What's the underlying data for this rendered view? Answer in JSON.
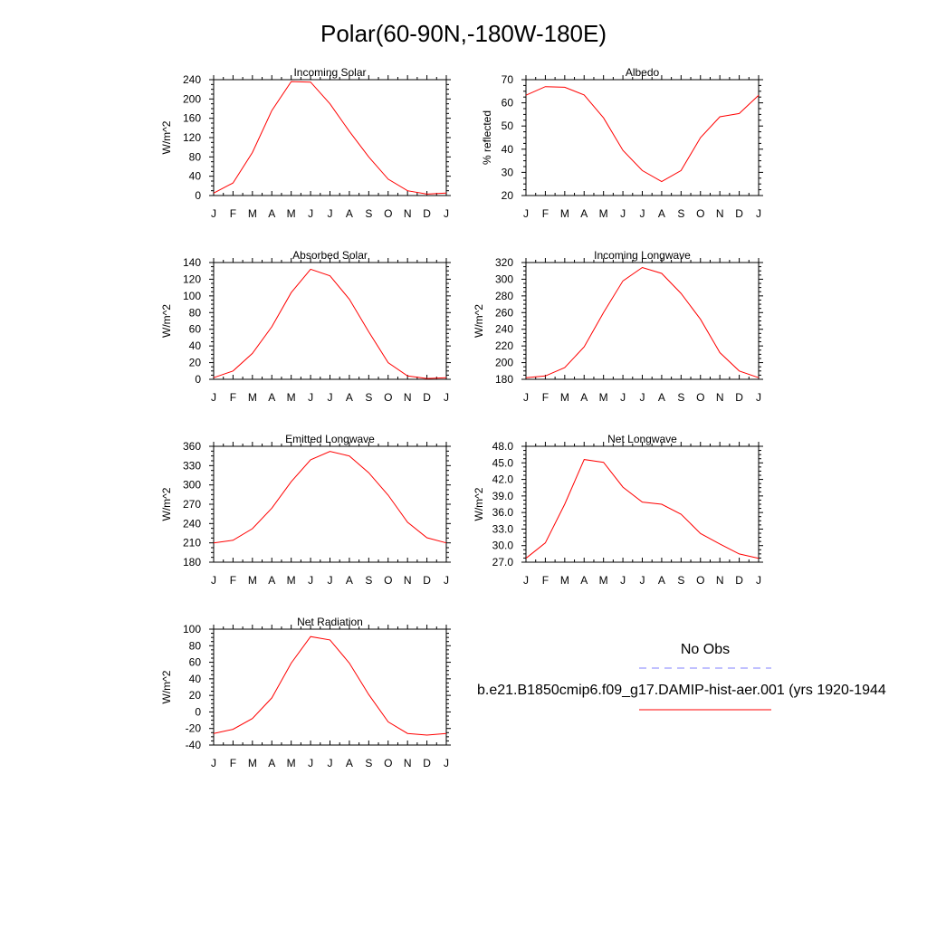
{
  "title": "Polar(60-90N,-180W-180E)",
  "months": [
    "J",
    "F",
    "M",
    "A",
    "M",
    "J",
    "J",
    "A",
    "S",
    "O",
    "N",
    "D",
    "J"
  ],
  "colors": {
    "model": "#ff0000",
    "obs": "#8080ff",
    "axis": "#000000"
  },
  "chart_data": [
    {
      "type": "line",
      "title": "Incoming Solar",
      "ylabel": "W/m^2",
      "ylim": [
        0,
        240
      ],
      "yticks": [
        "0",
        "40",
        "80",
        "120",
        "160",
        "200",
        "240"
      ],
      "categories": [
        "J",
        "F",
        "M",
        "A",
        "M",
        "J",
        "J",
        "A",
        "S",
        "O",
        "N",
        "D",
        "J"
      ],
      "series": [
        {
          "name": "b.e21.B1850cmip6.f09_g17.DAMIP-hist-aer.001 (yrs 1920-1944",
          "values": [
            5,
            26,
            89,
            176,
            236,
            235,
            190,
            133,
            80,
            34,
            10,
            3,
            5
          ]
        }
      ]
    },
    {
      "type": "line",
      "title": "Albedo",
      "ylabel": "% reflected",
      "ylim": [
        20,
        70
      ],
      "yticks": [
        "20",
        "30",
        "40",
        "50",
        "60",
        "70"
      ],
      "categories": [
        "J",
        "F",
        "M",
        "A",
        "M",
        "J",
        "J",
        "A",
        "S",
        "O",
        "N",
        "D",
        "J"
      ],
      "series": [
        {
          "name": "b.e21.B1850cmip6.f09_g17.DAMIP-hist-aer.001 (yrs 1920-1944",
          "values": [
            63.3,
            67,
            66.7,
            63.4,
            53.5,
            39.5,
            30.8,
            26,
            30.8,
            45,
            54,
            55.4,
            63.3
          ]
        }
      ]
    },
    {
      "type": "line",
      "title": "Absorbed Solar",
      "ylabel": "W/m^2",
      "ylim": [
        0,
        140
      ],
      "yticks": [
        "0",
        "20",
        "40",
        "60",
        "80",
        "100",
        "120",
        "140"
      ],
      "categories": [
        "J",
        "F",
        "M",
        "A",
        "M",
        "J",
        "J",
        "A",
        "S",
        "O",
        "N",
        "D",
        "J"
      ],
      "series": [
        {
          "name": "b.e21.B1850cmip6.f09_g17.DAMIP-hist-aer.001 (yrs 1920-1944",
          "values": [
            2,
            10,
            31,
            63,
            104,
            132,
            124,
            96,
            57,
            20,
            4,
            1,
            2
          ]
        }
      ]
    },
    {
      "type": "line",
      "title": "Incoming Longwave",
      "ylabel": "W/m^2",
      "ylim": [
        180,
        320
      ],
      "yticks": [
        "180",
        "200",
        "220",
        "240",
        "260",
        "280",
        "300",
        "320"
      ],
      "categories": [
        "J",
        "F",
        "M",
        "A",
        "M",
        "J",
        "J",
        "A",
        "S",
        "O",
        "N",
        "D",
        "J"
      ],
      "series": [
        {
          "name": "b.e21.B1850cmip6.f09_g17.DAMIP-hist-aer.001 (yrs 1920-1944",
          "values": [
            182,
            184,
            194,
            219,
            260,
            298,
            314,
            307,
            283,
            252,
            212,
            190,
            182
          ]
        }
      ]
    },
    {
      "type": "line",
      "title": "Emitted Longwave",
      "ylabel": "W/m^2",
      "ylim": [
        180,
        360
      ],
      "yticks": [
        "180",
        "210",
        "240",
        "270",
        "300",
        "330",
        "360"
      ],
      "categories": [
        "J",
        "F",
        "M",
        "A",
        "M",
        "J",
        "J",
        "A",
        "S",
        "O",
        "N",
        "D",
        "J"
      ],
      "series": [
        {
          "name": "b.e21.B1850cmip6.f09_g17.DAMIP-hist-aer.001 (yrs 1920-1944",
          "values": [
            210,
            214,
            232,
            264,
            305,
            339,
            352,
            345,
            319,
            284,
            242,
            218,
            210
          ]
        }
      ]
    },
    {
      "type": "line",
      "title": "Net Longwave",
      "ylabel": "W/m^2",
      "ylim": [
        27,
        48
      ],
      "yticks": [
        "27.0",
        "30.0",
        "33.0",
        "36.0",
        "39.0",
        "42.0",
        "45.0",
        "48.0"
      ],
      "categories": [
        "J",
        "F",
        "M",
        "A",
        "M",
        "J",
        "J",
        "A",
        "S",
        "O",
        "N",
        "D",
        "J"
      ],
      "series": [
        {
          "name": "b.e21.B1850cmip6.f09_g17.DAMIP-hist-aer.001 (yrs 1920-1944",
          "values": [
            27.7,
            30.5,
            37.5,
            45.6,
            45.1,
            40.6,
            37.9,
            37.5,
            35.7,
            32.2,
            30.3,
            28.5,
            27.7
          ]
        }
      ]
    },
    {
      "type": "line",
      "title": "Net Radiation",
      "ylabel": "W/m^2",
      "ylim": [
        -40,
        100
      ],
      "yticks": [
        "-40",
        "-20",
        "0",
        "20",
        "40",
        "60",
        "80",
        "100"
      ],
      "categories": [
        "J",
        "F",
        "M",
        "A",
        "M",
        "J",
        "J",
        "A",
        "S",
        "O",
        "N",
        "D",
        "J"
      ],
      "series": [
        {
          "name": "b.e21.B1850cmip6.f09_g17.DAMIP-hist-aer.001 (yrs 1920-1944",
          "values": [
            -26,
            -21,
            -8,
            17,
            59,
            91,
            87,
            59,
            21,
            -12,
            -26,
            -28,
            -26
          ]
        }
      ]
    }
  ],
  "legend": {
    "obs_label": "No Obs",
    "model_label": "b.e21.B1850cmip6.f09_g17.DAMIP-hist-aer.001 (yrs 1920-1944"
  }
}
